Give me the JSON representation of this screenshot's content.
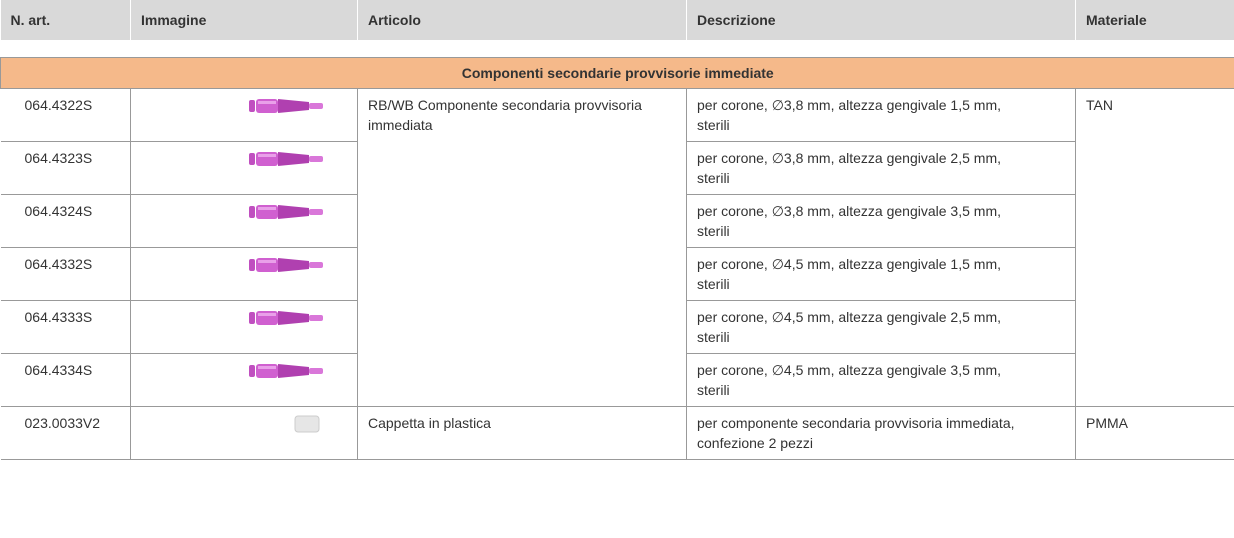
{
  "header": {
    "columns": [
      "N. art.",
      "Immagine",
      "Articolo",
      "Descrizione",
      "Materiale"
    ]
  },
  "section": {
    "title": "Componenti secondarie provvisorie immediate"
  },
  "groups": [
    {
      "articolo": "RB/WB Componente secondaria provvisoria immediata",
      "materiale": "TAN",
      "items": [
        {
          "n_art": "064.4322S",
          "descrizione": "per corone, ∅3,8 mm, altezza gengivale 1,5 mm, sterili"
        },
        {
          "n_art": "064.4323S",
          "descrizione": "per corone, ∅3,8 mm, altezza gengivale 2,5 mm, sterili"
        },
        {
          "n_art": "064.4324S",
          "descrizione": "per corone, ∅3,8 mm, altezza gengivale 3,5 mm, sterili"
        },
        {
          "n_art": "064.4332S",
          "descrizione": "per corone, ∅4,5 mm, altezza gengivale 1,5 mm, sterili"
        },
        {
          "n_art": "064.4333S",
          "descrizione": "per corone, ∅4,5 mm, altezza gengivale 2,5 mm, sterili"
        },
        {
          "n_art": "064.4334S",
          "descrizione": "per corone, ∅4,5 mm, altezza gengivale 3,5 mm, sterili"
        }
      ]
    },
    {
      "articolo": "Cappetta in plastica",
      "materiale": "PMMA",
      "items": [
        {
          "n_art": "023.0033V2",
          "descrizione": "per componente secondaria provvisoria immediata, confezione 2 pezzi"
        }
      ]
    }
  ]
}
